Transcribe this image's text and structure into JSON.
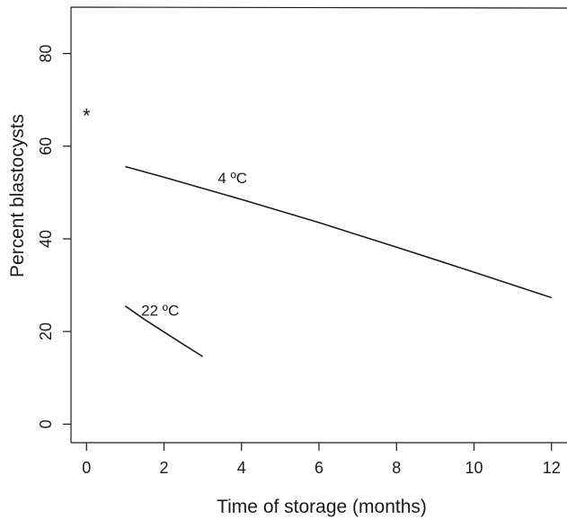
{
  "chart_data": {
    "type": "line",
    "xlabel": "Time of storage (months)",
    "ylabel": "Percent blastocysts",
    "xlim": [
      -0.4,
      12.4
    ],
    "ylim": [
      -4,
      90
    ],
    "xticks": [
      0,
      2,
      4,
      6,
      8,
      10,
      12
    ],
    "yticks": [
      0,
      20,
      40,
      60,
      80
    ],
    "series": [
      {
        "name": "4 ºC",
        "x": [
          1,
          2,
          4,
          6,
          8,
          10,
          12
        ],
        "y": [
          55.6,
          53.3,
          48.5,
          43.5,
          38.2,
          32.8,
          27.3
        ]
      },
      {
        "name": "22 ºC",
        "x": [
          1,
          1.5,
          2,
          2.5,
          3
        ],
        "y": [
          25.5,
          22.6,
          19.9,
          17.2,
          14.6
        ]
      }
    ],
    "annotations": [
      {
        "text": "*",
        "x": 0,
        "y": 67
      }
    ]
  }
}
